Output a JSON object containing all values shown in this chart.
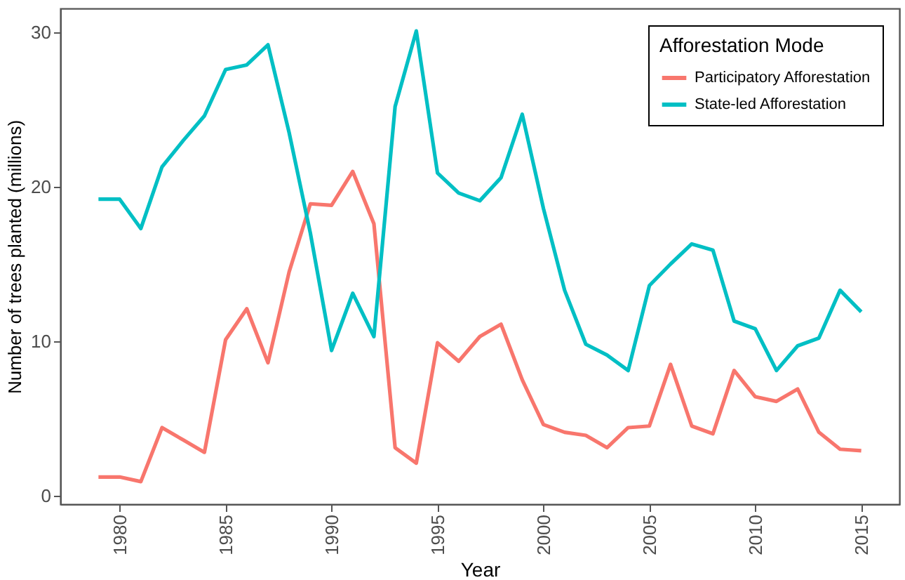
{
  "chart_data": {
    "type": "line",
    "xlabel": "Year",
    "ylabel": "Number of trees planted (millions)",
    "legend_title": "Afforestation Mode",
    "x": [
      1979,
      1980,
      1981,
      1982,
      1983,
      1984,
      1985,
      1986,
      1987,
      1988,
      1989,
      1990,
      1991,
      1992,
      1993,
      1994,
      1995,
      1996,
      1997,
      1998,
      1999,
      2000,
      2001,
      2002,
      2003,
      2004,
      2005,
      2006,
      2007,
      2008,
      2009,
      2010,
      2011,
      2012,
      2013,
      2014,
      2015
    ],
    "series": [
      {
        "name": "Participatory Afforestation",
        "color": "#f8766d",
        "values": [
          1.2,
          1.2,
          0.9,
          4.4,
          3.6,
          2.8,
          10.1,
          12.1,
          8.6,
          14.5,
          18.9,
          18.8,
          21,
          17.6,
          3.1,
          2.1,
          9.9,
          8.7,
          10.3,
          11.1,
          7.5,
          4.6,
          4.1,
          3.9,
          3.1,
          4.4,
          4.5,
          8.5,
          4.5,
          4.0,
          8.1,
          6.4,
          6.1,
          6.9,
          4.1,
          3.0,
          2.9
        ]
      },
      {
        "name": "State-led Afforestation",
        "color": "#00bfc4",
        "values": [
          19.2,
          19.2,
          17.3,
          21.3,
          23,
          24.6,
          27.6,
          27.9,
          29.2,
          23.5,
          17,
          9.4,
          13.1,
          10.3,
          25.2,
          30.1,
          20.9,
          19.6,
          19.1,
          20.6,
          24.7,
          18.6,
          13.3,
          9.8,
          9.1,
          8.1,
          13.6,
          15,
          16.3,
          15.9,
          11.3,
          10.8,
          8.1,
          9.7,
          10.2,
          13.3,
          11.9
        ]
      }
    ],
    "xlim": [
      1977.2,
      2016.8
    ],
    "xticks": [
      1980,
      1985,
      1990,
      1995,
      2000,
      2005,
      2010,
      2015
    ],
    "ylim": [
      -0.56,
      31.56
    ],
    "yticks": [
      0,
      10,
      20,
      30
    ],
    "grid": false,
    "legend": "top right",
    "marker": "none",
    "line_style": "solid"
  }
}
